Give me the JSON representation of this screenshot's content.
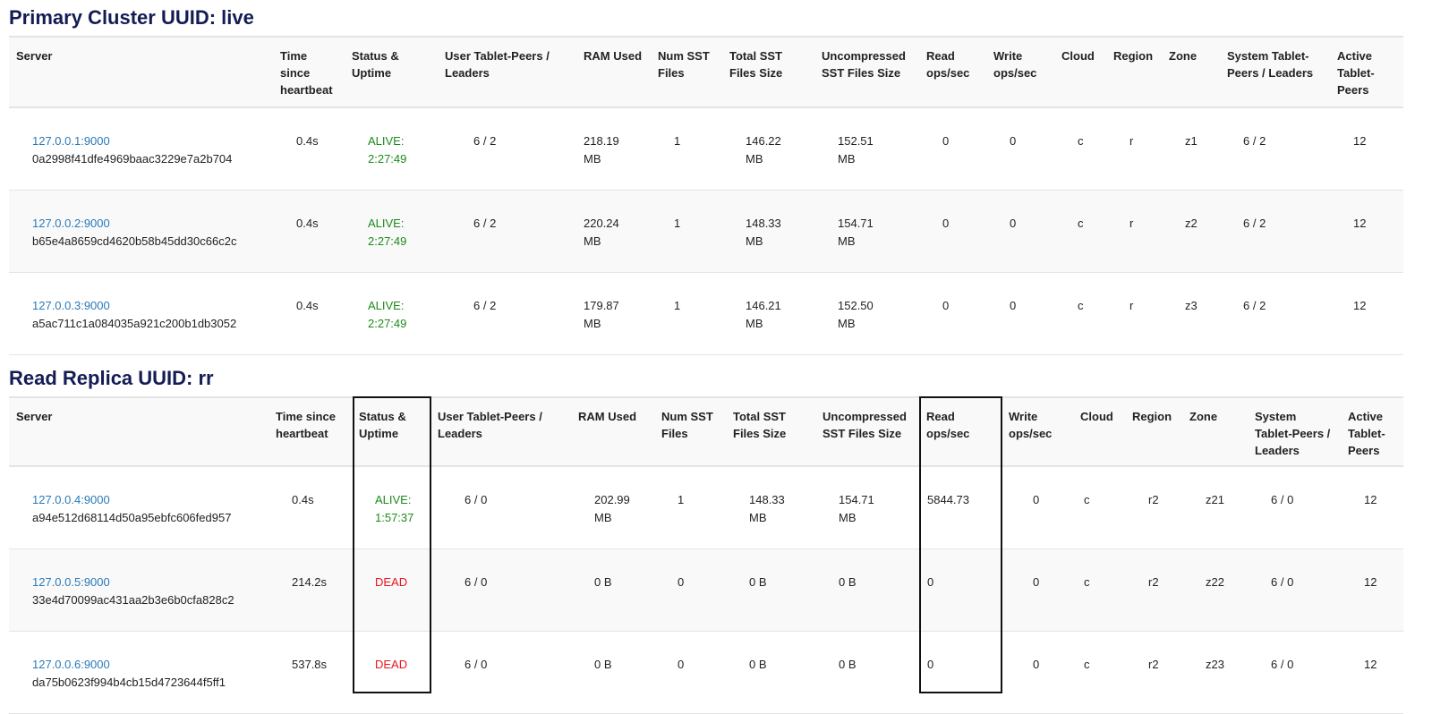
{
  "primary": {
    "title": "Primary Cluster UUID: live",
    "headers": [
      "Server",
      "Time since heartbeat",
      "Status & Uptime",
      "User Tablet-Peers / Leaders",
      "RAM Used",
      "Num SST Files",
      "Total SST Files Size",
      "Uncompressed SST Files Size",
      "Read ops/sec",
      "Write ops/sec",
      "Cloud",
      "Region",
      "Zone",
      "System Tablet-Peers / Leaders",
      "Active Tablet-Peers"
    ],
    "rows": [
      {
        "addr": "127.0.0.1:9000",
        "uuid": "0a2998f41dfe4969baac3229e7a2b704",
        "hb": "0.4s",
        "status": "ALIVE:",
        "uptime": "2:27:49",
        "user": "6 / 2",
        "ram": "218.19 MB",
        "sst": "1",
        "total": "146.22 MB",
        "uncomp": "152.51 MB",
        "read": "0",
        "write": "0",
        "cloud": "c",
        "region": "r",
        "zone": "z1",
        "system": "6 / 2",
        "active": "12"
      },
      {
        "addr": "127.0.0.2:9000",
        "uuid": "b65e4a8659cd4620b58b45dd30c66c2c",
        "hb": "0.4s",
        "status": "ALIVE:",
        "uptime": "2:27:49",
        "user": "6 / 2",
        "ram": "220.24 MB",
        "sst": "1",
        "total": "148.33 MB",
        "uncomp": "154.71 MB",
        "read": "0",
        "write": "0",
        "cloud": "c",
        "region": "r",
        "zone": "z2",
        "system": "6 / 2",
        "active": "12"
      },
      {
        "addr": "127.0.0.3:9000",
        "uuid": "a5ac711c1a084035a921c200b1db3052",
        "hb": "0.4s",
        "status": "ALIVE:",
        "uptime": "2:27:49",
        "user": "6 / 2",
        "ram": "179.87 MB",
        "sst": "1",
        "total": "146.21 MB",
        "uncomp": "152.50 MB",
        "read": "0",
        "write": "0",
        "cloud": "c",
        "region": "r",
        "zone": "z3",
        "system": "6 / 2",
        "active": "12"
      }
    ]
  },
  "replica": {
    "title": "Read Replica UUID: rr",
    "headers": [
      "Server",
      "Time since heartbeat",
      "Status & Uptime",
      "User Tablet-Peers / Leaders",
      "RAM Used",
      "Num SST Files",
      "Total SST Files Size",
      "Uncompressed SST Files Size",
      "Read ops/sec",
      "Write ops/sec",
      "Cloud",
      "Region",
      "Zone",
      "System Tablet-Peers / Leaders",
      "Active Tablet-Peers"
    ],
    "rows": [
      {
        "addr": "127.0.0.4:9000",
        "uuid": "a94e512d68114d50a95ebfc606fed957",
        "hb": "0.4s",
        "status": "ALIVE:",
        "uptime": "1:57:37",
        "user": "6 / 0",
        "ram": "202.99 MB",
        "sst": "1",
        "total": "148.33 MB",
        "uncomp": "154.71 MB",
        "read": "5844.73",
        "write": "0",
        "cloud": "c",
        "region": "r2",
        "zone": "z21",
        "system": "6 / 0",
        "active": "12"
      },
      {
        "addr": "127.0.0.5:9000",
        "uuid": "33e4d70099ac431aa2b3e6b0cfa828c2",
        "hb": "214.2s",
        "status": "DEAD",
        "uptime": "",
        "user": "6 / 0",
        "ram": "0 B",
        "sst": "0",
        "total": "0 B",
        "uncomp": "0 B",
        "read": "0",
        "write": "0",
        "cloud": "c",
        "region": "r2",
        "zone": "z22",
        "system": "6 / 0",
        "active": "12"
      },
      {
        "addr": "127.0.0.6:9000",
        "uuid": "da75b0623f994b4cb15d4723644f5ff1",
        "hb": "537.8s",
        "status": "DEAD",
        "uptime": "",
        "user": "6 / 0",
        "ram": "0 B",
        "sst": "0",
        "total": "0 B",
        "uncomp": "0 B",
        "read": "0",
        "write": "0",
        "cloud": "c",
        "region": "r2",
        "zone": "z23",
        "system": "6 / 0",
        "active": "12"
      }
    ]
  },
  "colors": {
    "title": "#141c55",
    "link": "#2a7ab8",
    "alive": "#1b8a1b",
    "dead": "#e8141e"
  }
}
